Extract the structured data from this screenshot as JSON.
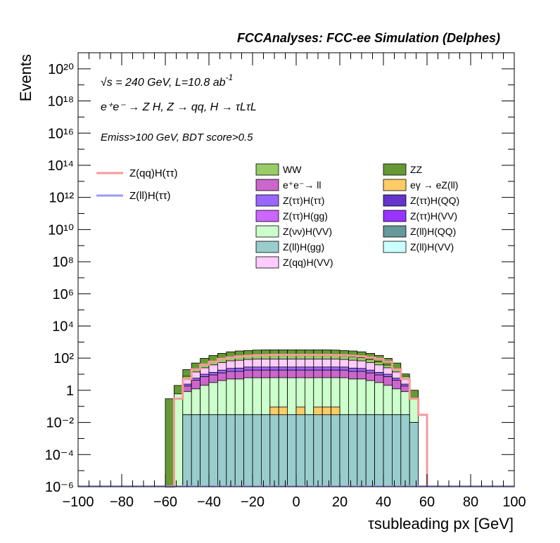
{
  "header": {
    "title": "FCCAnalyses: FCC-ee Simulation (Delphes)"
  },
  "annotations": {
    "energy": "√s = 240 GeV, L=10.8 ab",
    "lumi_exp": "-1",
    "process": "e⁺e⁻ → Z H, Z → qq, H → τLτL",
    "selection": "Emiss>100 GeV, BDT score>0.5"
  },
  "legend_signal": [
    {
      "label": "Z(qq)H(ττ)",
      "color": "#f59a9a"
    },
    {
      "label": "Z(ll)H(ττ)",
      "color": "#9a9af5"
    }
  ],
  "legend_bkg": [
    {
      "label": "WW",
      "color": "#99cc66"
    },
    {
      "label": "ZZ",
      "color": "#669933"
    },
    {
      "label": "e⁺e⁻→ ll",
      "color": "#cc66cc"
    },
    {
      "label": "eγ → eZ(ll)",
      "color": "#ffcc66"
    },
    {
      "label": "Z(ττ)H(ττ)",
      "color": "#9966ff"
    },
    {
      "label": "Z(ττ)H(QQ)",
      "color": "#6633cc"
    },
    {
      "label": "Z(ττ)H(gg)",
      "color": "#cc66ff"
    },
    {
      "label": "Z(ττ)H(VV)",
      "color": "#9933ff"
    },
    {
      "label": "Z(νν)H(VV)",
      "color": "#ccffcc"
    },
    {
      "label": "Z(ll)H(QQ)",
      "color": "#669999"
    },
    {
      "label": "Z(ll)H(gg)",
      "color": "#99cccc"
    },
    {
      "label": "Z(ll)H(VV)",
      "color": "#ccffff"
    },
    {
      "label": "Z(qq)H(VV)",
      "color": "#ffccff"
    }
  ],
  "chart_data": {
    "type": "area",
    "title": "FCCAnalyses: FCC-ee Simulation (Delphes)",
    "xlabel": "τsubleading px [GeV]",
    "ylabel": "Events",
    "xlim": [
      -100,
      100
    ],
    "ylim": [
      1e-06,
      1e+21
    ],
    "log_y": true,
    "grid": false,
    "bin_width": 4,
    "xticks": [
      "−100",
      "−80",
      "−60",
      "−40",
      "−20",
      "0",
      "20",
      "40",
      "60",
      "80",
      "100"
    ],
    "yticks": [
      "10⁻⁶",
      "10⁻⁴",
      "10⁻²",
      "1",
      "10²",
      "10⁴",
      "10⁶",
      "10⁸",
      "10¹⁰",
      "10¹²",
      "10¹⁴",
      "10¹⁶",
      "10¹⁸",
      "10²⁰"
    ],
    "x_edges": [
      -60,
      -56,
      -52,
      -48,
      -44,
      -40,
      -36,
      -32,
      -28,
      -24,
      -20,
      -16,
      -12,
      -8,
      -4,
      0,
      4,
      8,
      12,
      16,
      20,
      24,
      28,
      32,
      36,
      40,
      44,
      48,
      52,
      56,
      60
    ],
    "stack_totals": [
      0.3,
      2,
      20,
      50,
      100,
      150,
      200,
      250,
      280,
      300,
      320,
      330,
      330,
      330,
      330,
      330,
      330,
      330,
      330,
      320,
      300,
      280,
      250,
      200,
      150,
      100,
      50,
      10,
      1,
      0
    ],
    "stack_components": [
      {
        "name": "Z(ll)H(gg)",
        "color": "#99cccc",
        "values": [
          0,
          0,
          0.03,
          0.03,
          0.03,
          0.03,
          0.03,
          0.03,
          0.03,
          0.03,
          0.03,
          0.03,
          0.03,
          0.03,
          0.03,
          0.03,
          0.03,
          0.03,
          0.03,
          0.03,
          0.03,
          0.03,
          0.03,
          0.03,
          0.03,
          0.03,
          0.03,
          0.03,
          0.01,
          0
        ]
      },
      {
        "name": "eγ → eZ(ll)",
        "color": "#ffcc66",
        "values": [
          0,
          0,
          0,
          0,
          0,
          0,
          0,
          0,
          0,
          0,
          0,
          0,
          0.06,
          0.06,
          0,
          0.06,
          0,
          0.06,
          0.06,
          0.06,
          0,
          0,
          0,
          0,
          0,
          0,
          0,
          0,
          0,
          0
        ]
      },
      {
        "name": "Z(νν)H(VV)",
        "color": "#ccffcc",
        "values": [
          0,
          0.6,
          0.8,
          1.2,
          2,
          3,
          4,
          5,
          5,
          6,
          6,
          6,
          6,
          6,
          6,
          6,
          6,
          6,
          6,
          6,
          6,
          5,
          5,
          4,
          3,
          2,
          1.2,
          0.8,
          0.3,
          0
        ]
      },
      {
        "name": "e⁺e⁻→ ll",
        "color": "#cc66cc",
        "values": [
          0,
          0,
          1,
          3,
          5,
          6,
          8,
          10,
          10,
          12,
          12,
          12,
          12,
          12,
          12,
          12,
          12,
          12,
          12,
          12,
          12,
          10,
          10,
          8,
          6,
          5,
          3,
          1,
          0,
          0
        ]
      },
      {
        "name": "Z(ττ)H(ττ)",
        "color": "#9966ff",
        "values": [
          0,
          0,
          0.6,
          1.5,
          3,
          4,
          6,
          8,
          9,
          10,
          10,
          10,
          10,
          10,
          10,
          10,
          10,
          10,
          10,
          10,
          10,
          9,
          8,
          6,
          4,
          3,
          1.5,
          0.6,
          0,
          0
        ]
      },
      {
        "name": "Z(qq)H(VV)",
        "color": "#ffccff",
        "values": [
          0,
          0,
          3,
          8,
          15,
          25,
          35,
          45,
          50,
          55,
          60,
          60,
          60,
          60,
          60,
          60,
          60,
          60,
          60,
          60,
          55,
          50,
          45,
          35,
          25,
          15,
          8,
          3,
          0,
          0
        ]
      },
      {
        "name": "WW",
        "color": "#99cc66",
        "values": [
          0,
          0,
          2,
          6,
          12,
          20,
          30,
          40,
          45,
          50,
          55,
          55,
          55,
          55,
          55,
          55,
          55,
          55,
          55,
          55,
          50,
          45,
          40,
          30,
          20,
          12,
          6,
          2,
          0,
          0
        ]
      },
      {
        "name": "ZZ",
        "color": "#669933",
        "values": [
          0.3,
          1.4,
          12,
          30,
          60,
          90,
          115,
          140,
          160,
          165,
          175,
          185,
          185,
          185,
          185,
          185,
          185,
          185,
          185,
          175,
          165,
          160,
          140,
          115,
          90,
          60,
          30,
          3,
          0.7,
          0
        ]
      }
    ],
    "signal": [
      {
        "name": "Z(qq)H(ττ)",
        "color": "#f59a9a",
        "values": [
          0,
          0.3,
          5,
          20,
          40,
          60,
          90,
          110,
          130,
          140,
          150,
          155,
          160,
          160,
          160,
          160,
          160,
          160,
          160,
          155,
          150,
          140,
          130,
          110,
          90,
          60,
          20,
          5,
          0.3,
          0.03
        ]
      },
      {
        "name": "Z(ll)H(ττ)",
        "color": "#9a9af5",
        "values": [
          0,
          0,
          0,
          0,
          0,
          0,
          0,
          0,
          0,
          0,
          0,
          0,
          0,
          0,
          0,
          0,
          0,
          0,
          0,
          0,
          0,
          0,
          0,
          0,
          0,
          0,
          0,
          0,
          0,
          0
        ]
      }
    ]
  }
}
